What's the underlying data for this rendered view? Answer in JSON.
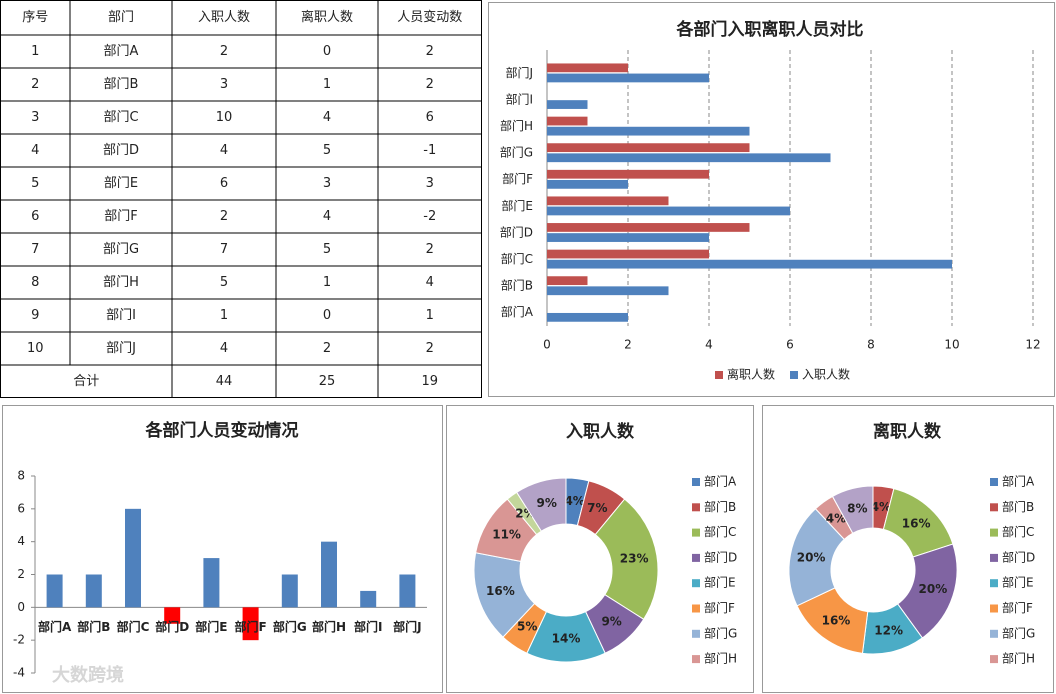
{
  "table": {
    "header": [
      "序号",
      "部门",
      "入职人数",
      "离职人数",
      "人员变动数"
    ],
    "rows": [
      [
        1,
        "部门A",
        2,
        0,
        2
      ],
      [
        2,
        "部门B",
        3,
        1,
        2
      ],
      [
        3,
        "部门C",
        10,
        4,
        6
      ],
      [
        4,
        "部门D",
        4,
        5,
        -1
      ],
      [
        5,
        "部门E",
        6,
        3,
        3
      ],
      [
        6,
        "部门F",
        2,
        4,
        -2
      ],
      [
        7,
        "部门G",
        7,
        5,
        2
      ],
      [
        8,
        "部门H",
        5,
        1,
        4
      ],
      [
        9,
        "部门I",
        1,
        0,
        1
      ],
      [
        10,
        "部门J",
        4,
        2,
        2
      ]
    ],
    "total": [
      "合计",
      44,
      25,
      19
    ]
  },
  "chart_data": [
    {
      "type": "barh",
      "title": "各部门入职离职人员对比",
      "categories": [
        "部门A",
        "部门B",
        "部门C",
        "部门D",
        "部门E",
        "部门F",
        "部门G",
        "部门H",
        "部门I",
        "部门J"
      ],
      "series": [
        {
          "name": "离职人数",
          "color": "#c0504d",
          "values": [
            0,
            1,
            4,
            5,
            3,
            4,
            5,
            1,
            0,
            2
          ]
        },
        {
          "name": "入职人数",
          "color": "#4f81bd",
          "values": [
            2,
            3,
            10,
            4,
            6,
            2,
            7,
            5,
            1,
            4
          ]
        }
      ],
      "xlim": [
        0,
        12
      ],
      "xticks": [
        0,
        2,
        4,
        6,
        8,
        10,
        12
      ],
      "grid": true,
      "legend": "bottom"
    },
    {
      "type": "bar",
      "title": "各部门人员变动情况",
      "categories": [
        "部门A",
        "部门B",
        "部门C",
        "部门D",
        "部门E",
        "部门F",
        "部门G",
        "部门H",
        "部门I",
        "部门J"
      ],
      "values": [
        2,
        2,
        6,
        -1,
        3,
        -2,
        2,
        4,
        1,
        2
      ],
      "color": "#4f81bd",
      "negative_color": "#ff0000",
      "ylim": [
        -4,
        8
      ],
      "yticks": [
        -4,
        -2,
        0,
        2,
        4,
        6,
        8
      ],
      "grid": false
    },
    {
      "type": "donut",
      "title": "入职人数",
      "categories": [
        "部门A",
        "部门B",
        "部门C",
        "部门D",
        "部门E",
        "部门F",
        "部门G",
        "部门H",
        null,
        null
      ],
      "values": [
        4,
        7,
        23,
        9,
        14,
        5,
        16,
        11,
        2,
        9
      ],
      "value_labels": [
        "4%",
        "7%",
        "23%",
        "9%",
        "14%",
        "5%",
        "16%",
        "11%",
        "2%",
        "9%"
      ],
      "colors": [
        "#4f81bd",
        "#c0504d",
        "#9bbb59",
        "#8064a2",
        "#4bacc6",
        "#f79646",
        "#95b3d7",
        "#d99694",
        "#c3d69b",
        "#b3a2c7"
      ],
      "legend": "right"
    },
    {
      "type": "donut",
      "title": "离职人数",
      "categories": [
        "部门A",
        "部门B",
        "部门C",
        "部门D",
        "部门E",
        "部门F",
        "部门G",
        "部门H",
        null,
        null
      ],
      "values": [
        0,
        4,
        16,
        20,
        12,
        16,
        20,
        4,
        0,
        8
      ],
      "value_labels": [
        null,
        "4%",
        "16%",
        "20%",
        "12%",
        "16%",
        "20%",
        "4%",
        null,
        "8%"
      ],
      "colors": [
        "#4f81bd",
        "#c0504d",
        "#9bbb59",
        "#8064a2",
        "#4bacc6",
        "#f79646",
        "#95b3d7",
        "#d99694",
        "#c3d69b",
        "#b3a2c7"
      ],
      "legend": "right"
    }
  ],
  "watermark": "大数跨境"
}
